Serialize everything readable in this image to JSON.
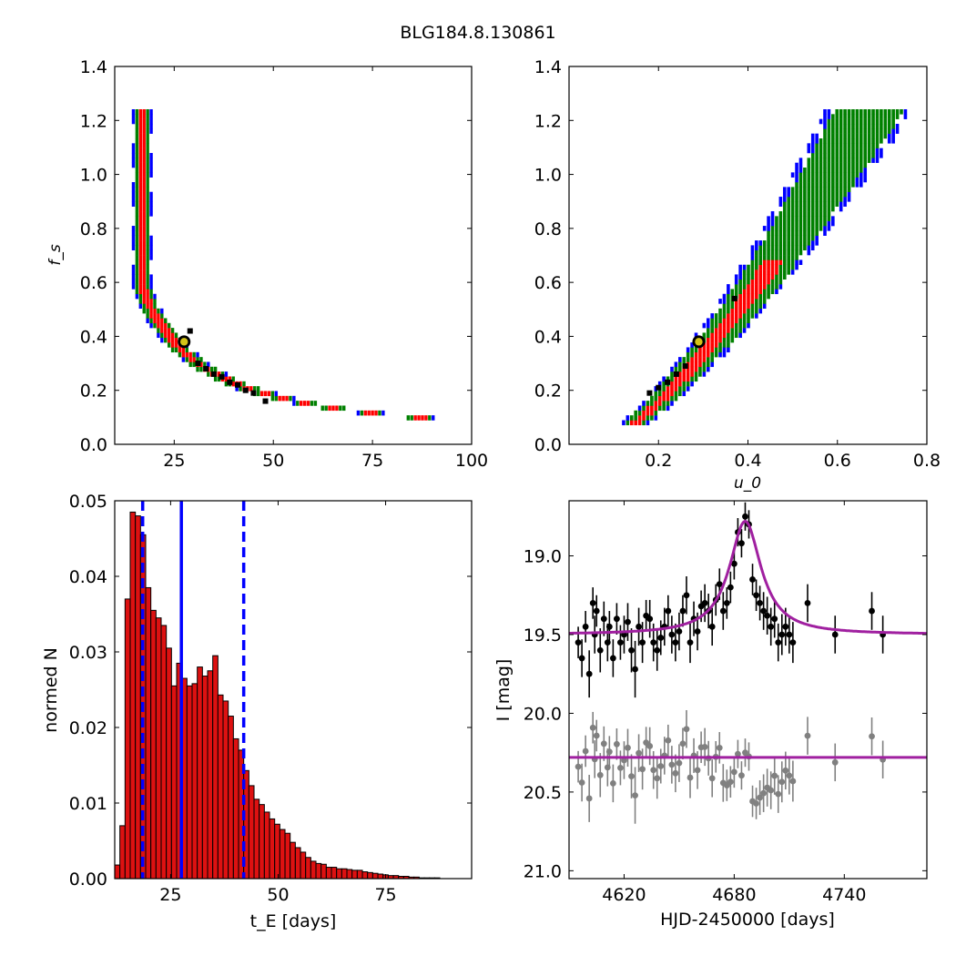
{
  "figure": {
    "title": "BLG184.8.130861"
  },
  "colors": {
    "c68": "#0000ff",
    "c95": "#008000",
    "c99": "#ff0000",
    "best": "#000000",
    "marker_face": "#d4c318",
    "model": "#a020a0",
    "residual": "#808080",
    "hist": "#dd1111"
  },
  "chart_data": [
    {
      "type": "heatmap",
      "panel": "top-left",
      "xlabel": "",
      "ylabel": "f_s",
      "xlim": [
        10,
        100
      ],
      "ylim": [
        0.0,
        1.4
      ],
      "xticks": [
        "25",
        "50",
        "75",
        "100"
      ],
      "yticks": [
        "0.0",
        "0.2",
        "0.4",
        "0.6",
        "0.8",
        "1.0",
        "1.2",
        "1.4"
      ],
      "region_colors": [
        "blue",
        "green",
        "red",
        "black"
      ],
      "best_fit": {
        "x": 27.5,
        "y": 0.38
      },
      "grid": false
    },
    {
      "type": "heatmap",
      "panel": "top-right",
      "xlabel": "u_0",
      "ylabel": "",
      "xlim": [
        0.0,
        0.8
      ],
      "ylim": [
        0.0,
        1.4
      ],
      "xticks": [
        "0.2",
        "0.4",
        "0.6",
        "0.8"
      ],
      "yticks": [
        "0.0",
        "0.2",
        "0.4",
        "0.6",
        "0.8",
        "1.0",
        "1.2",
        "1.4"
      ],
      "region_colors": [
        "blue",
        "green",
        "red",
        "black"
      ],
      "best_fit": {
        "x": 0.29,
        "y": 0.38
      },
      "grid": false
    },
    {
      "type": "bar",
      "panel": "bottom-left",
      "xlabel": "t_E [days]",
      "ylabel": "normed N",
      "xlim": [
        12,
        95
      ],
      "ylim": [
        0.0,
        0.05
      ],
      "xticks": [
        "25",
        "50",
        "75"
      ],
      "yticks": [
        "0.00",
        "0.01",
        "0.02",
        "0.03",
        "0.04",
        "0.05"
      ],
      "bin_start": 12,
      "bin_width": 1.2,
      "values": [
        0.0018,
        0.007,
        0.037,
        0.0485,
        0.048,
        0.0455,
        0.0385,
        0.0355,
        0.0345,
        0.0335,
        0.0305,
        0.0255,
        0.0285,
        0.0265,
        0.0255,
        0.0258,
        0.028,
        0.0268,
        0.0275,
        0.0295,
        0.0243,
        0.0235,
        0.0215,
        0.0185,
        0.017,
        0.0143,
        0.0123,
        0.0105,
        0.0098,
        0.0088,
        0.0079,
        0.0072,
        0.0065,
        0.006,
        0.0048,
        0.0041,
        0.0035,
        0.0028,
        0.0023,
        0.002,
        0.0019,
        0.0015,
        0.0015,
        0.0013,
        0.0013,
        0.0012,
        0.0011,
        0.0011,
        0.0009,
        0.0008,
        0.0007,
        0.0006,
        0.0005,
        0.0004,
        0.0004,
        0.0003,
        0.0003,
        0.0002,
        0.0002,
        0.0001,
        0.0001,
        0.0001,
        0.0001,
        0.0,
        0.0,
        0.0,
        0.0,
        0.0,
        0.0
      ],
      "vlines": [
        {
          "x": 27.5,
          "style": "solid"
        },
        {
          "x": 18.5,
          "style": "dashed"
        },
        {
          "x": 42.0,
          "style": "dashed"
        }
      ],
      "grid": false
    },
    {
      "type": "scatter",
      "panel": "bottom-right",
      "xlabel": "HJD-2450000 [days]",
      "ylabel": "I [mag]",
      "xlim": [
        4590,
        4785
      ],
      "ylim": [
        21.05,
        18.65
      ],
      "xticks": [
        "4620",
        "4680",
        "4740"
      ],
      "yticks": [
        "19.0",
        "19.5",
        "20.0",
        "20.5",
        "21.0"
      ],
      "model": {
        "t0": 4686,
        "baseline": 19.5,
        "peak": 18.78,
        "tau": 10.5
      },
      "residual_offset": 20.28,
      "series": [
        {
          "x": [
            4595,
            4597,
            4599,
            4601,
            4603,
            4604,
            4605,
            4607,
            4609,
            4611,
            4612,
            4614,
            4616,
            4618,
            4620,
            4622,
            4624,
            4626,
            4628,
            4630,
            4632,
            4634,
            4636,
            4638,
            4640,
            4642,
            4644,
            4646,
            4648,
            4650,
            4652,
            4654,
            4656,
            4658,
            4660,
            4662,
            4664,
            4666,
            4668,
            4670,
            4672,
            4674,
            4676,
            4678,
            4680,
            4682,
            4684,
            4686,
            4688,
            4690,
            4692,
            4694,
            4696,
            4698,
            4700,
            4702,
            4704,
            4706,
            4708,
            4710,
            4712,
            4720,
            4735,
            4755,
            4761
          ],
          "y": [
            19.55,
            19.65,
            19.45,
            19.75,
            19.3,
            19.5,
            19.35,
            19.6,
            19.4,
            19.55,
            19.45,
            19.65,
            19.4,
            19.55,
            19.5,
            19.42,
            19.6,
            19.72,
            19.45,
            19.55,
            19.38,
            19.4,
            19.55,
            19.6,
            19.52,
            19.45,
            19.35,
            19.5,
            19.55,
            19.48,
            19.35,
            19.25,
            19.55,
            19.4,
            19.48,
            19.32,
            19.3,
            19.35,
            19.45,
            19.28,
            19.18,
            19.35,
            19.3,
            19.2,
            19.05,
            18.85,
            18.92,
            18.75,
            18.8,
            19.15,
            19.25,
            19.3,
            19.35,
            19.38,
            19.45,
            19.4,
            19.55,
            19.5,
            19.45,
            19.5,
            19.55,
            19.3,
            19.5,
            19.35,
            19.5
          ],
          "err": [
            0.1,
            0.12,
            0.1,
            0.15,
            0.1,
            0.12,
            0.1,
            0.14,
            0.11,
            0.12,
            0.1,
            0.12,
            0.1,
            0.11,
            0.12,
            0.12,
            0.14,
            0.18,
            0.12,
            0.13,
            0.1,
            0.12,
            0.12,
            0.13,
            0.11,
            0.12,
            0.1,
            0.12,
            0.12,
            0.12,
            0.1,
            0.12,
            0.13,
            0.11,
            0.12,
            0.1,
            0.12,
            0.11,
            0.12,
            0.1,
            0.1,
            0.12,
            0.1,
            0.1,
            0.1,
            0.09,
            0.09,
            0.09,
            0.09,
            0.1,
            0.1,
            0.11,
            0.12,
            0.12,
            0.12,
            0.12,
            0.12,
            0.13,
            0.12,
            0.12,
            0.13,
            0.12,
            0.12,
            0.12,
            0.12
          ]
        }
      ],
      "grid": false
    }
  ]
}
